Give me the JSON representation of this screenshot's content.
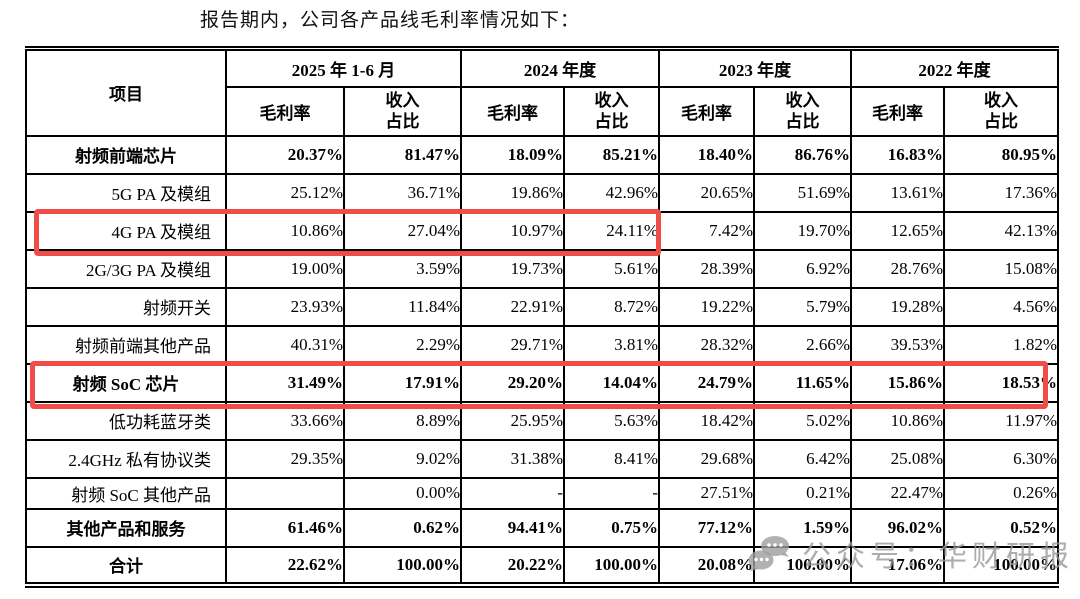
{
  "title": "报告期内，公司各产品线毛利率情况如下：",
  "table": {
    "item_header": "项目",
    "period_groups": [
      {
        "label": "2025 年 1-6 月",
        "margin_label": "毛利率",
        "share_label": "收入\n占比"
      },
      {
        "label": "2024 年度",
        "margin_label": "毛利率",
        "share_label": "收入\n占比"
      },
      {
        "label": "2023 年度",
        "margin_label": "毛利率",
        "share_label": "收入\n占比"
      },
      {
        "label": "2022 年度",
        "margin_label": "毛利率",
        "share_label": "收入\n占比"
      }
    ],
    "rows": [
      {
        "label": "射频前端芯片",
        "bold": true,
        "values": [
          "20.37%",
          "81.47%",
          "18.09%",
          "85.21%",
          "18.40%",
          "86.76%",
          "16.83%",
          "80.95%"
        ]
      },
      {
        "label": "5G PA 及模组",
        "bold": false,
        "values": [
          "25.12%",
          "36.71%",
          "19.86%",
          "42.96%",
          "20.65%",
          "51.69%",
          "13.61%",
          "17.36%"
        ]
      },
      {
        "label": "4G PA 及模组",
        "bold": false,
        "values": [
          "10.86%",
          "27.04%",
          "10.97%",
          "24.11%",
          "7.42%",
          "19.70%",
          "12.65%",
          "42.13%"
        ]
      },
      {
        "label": "2G/3G PA 及模组",
        "bold": false,
        "values": [
          "19.00%",
          "3.59%",
          "19.73%",
          "5.61%",
          "28.39%",
          "6.92%",
          "28.76%",
          "15.08%"
        ]
      },
      {
        "label": "射频开关",
        "bold": false,
        "values": [
          "23.93%",
          "11.84%",
          "22.91%",
          "8.72%",
          "19.22%",
          "5.79%",
          "19.28%",
          "4.56%"
        ]
      },
      {
        "label": "射频前端其他产品",
        "bold": false,
        "values": [
          "40.31%",
          "2.29%",
          "29.71%",
          "3.81%",
          "28.32%",
          "2.66%",
          "39.53%",
          "1.82%"
        ]
      },
      {
        "label": "射频 SoC 芯片",
        "bold": true,
        "values": [
          "31.49%",
          "17.91%",
          "29.20%",
          "14.04%",
          "24.79%",
          "11.65%",
          "15.86%",
          "18.53%"
        ]
      },
      {
        "label": "低功耗蓝牙类",
        "bold": false,
        "values": [
          "33.66%",
          "8.89%",
          "25.95%",
          "5.63%",
          "18.42%",
          "5.02%",
          "10.86%",
          "11.97%"
        ]
      },
      {
        "label": "2.4GHz 私有协议类",
        "bold": false,
        "values": [
          "29.35%",
          "9.02%",
          "31.38%",
          "8.41%",
          "29.68%",
          "6.42%",
          "25.08%",
          "6.30%"
        ]
      },
      {
        "label": "射频 SoC 其他产品",
        "bold": false,
        "values": [
          "",
          "0.00%",
          "-",
          "-",
          "27.51%",
          "0.21%",
          "22.47%",
          "0.26%"
        ]
      },
      {
        "label": "其他产品和服务",
        "bold": true,
        "values": [
          "61.46%",
          "0.62%",
          "94.41%",
          "0.75%",
          "77.12%",
          "1.59%",
          "96.02%",
          "0.52%"
        ]
      },
      {
        "label": "合计",
        "bold": true,
        "values": [
          "22.62%",
          "100.00%",
          "20.22%",
          "100.00%",
          "20.08%",
          "100.00%",
          "17.06%",
          "100.00%"
        ]
      }
    ]
  },
  "annotations": {
    "highlight_color": "#ee4d48",
    "highlighted_rows": [
      "4G PA 及模组",
      "射频 SoC 芯片"
    ]
  },
  "watermark": {
    "icon": "wechat-icon",
    "text": "公众号：华财研报",
    "color": "#989898"
  }
}
